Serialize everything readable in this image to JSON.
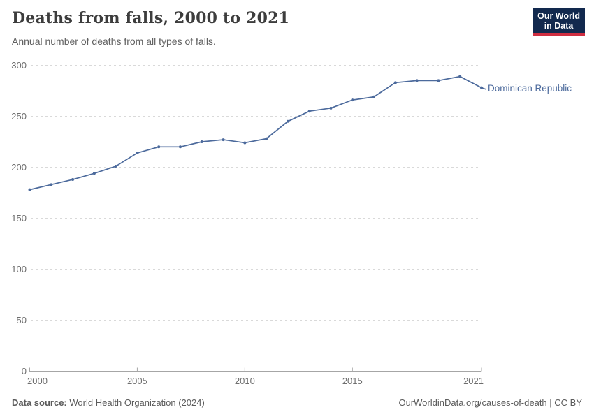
{
  "header": {
    "title": "Deaths from falls, 2000 to 2021",
    "subtitle": "Annual number of deaths from all types of falls.",
    "logo": {
      "line1": "Our World",
      "line2": "in Data",
      "bg_color": "#12294e",
      "bar_color": "#cf2e41",
      "text_color": "#ffffff"
    }
  },
  "chart_data": {
    "type": "line",
    "title": "Deaths from falls, 2000 to 2021",
    "subtitle": "Annual number of deaths from all types of falls.",
    "x": [
      2000,
      2001,
      2002,
      2003,
      2004,
      2005,
      2006,
      2007,
      2008,
      2009,
      2010,
      2011,
      2012,
      2013,
      2014,
      2015,
      2016,
      2017,
      2018,
      2019,
      2020,
      2021
    ],
    "series": [
      {
        "name": "Dominican Republic",
        "color": "#4c6a9c",
        "values": [
          178,
          183,
          188,
          194,
          201,
          214,
          220,
          220,
          225,
          227,
          224,
          228,
          245,
          255,
          258,
          266,
          269,
          283,
          285,
          285,
          289,
          278
        ]
      }
    ],
    "x_ticks": [
      2000,
      2005,
      2010,
      2015,
      2021
    ],
    "y_ticks": [
      0,
      50,
      100,
      150,
      200,
      250,
      300
    ],
    "xlim": [
      2000,
      2021
    ],
    "ylim": [
      0,
      300
    ],
    "xlabel": "",
    "ylabel": "",
    "grid": "horizontal-dashed",
    "legend_position": "line-end-label"
  },
  "footer": {
    "source_label": "Data source:",
    "source_text": "World Health Organization (2024)",
    "credit": "OurWorldinData.org/causes-of-death | CC BY"
  },
  "colors": {
    "line": "#4c6a9c",
    "grid": "#d9d9d9",
    "axis": "#a6a6a6",
    "tick_label": "#6e6e6e",
    "title": "#3d3d3d",
    "subtitle": "#616161",
    "footer": "#5b5b5b"
  }
}
